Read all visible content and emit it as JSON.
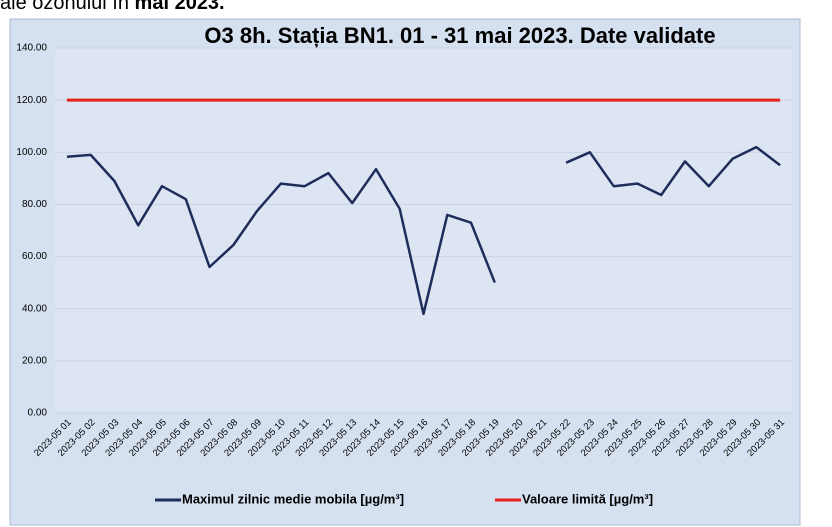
{
  "header": {
    "text": "ale ozonului în",
    "bold": "mai 2023."
  },
  "chart_data": {
    "type": "line",
    "title": "O3 8h. Stația BN1. 01 - 31 mai 2023. Date validate",
    "categories": [
      "2023-05 01",
      "2023-05 02",
      "2023-05 03",
      "2023-05 04",
      "2023-05 05",
      "2023-05 06",
      "2023-05 07",
      "2023-05 08",
      "2023-05 09",
      "2023-05 10",
      "2023-05 11",
      "2023-05 12",
      "2023-05 13",
      "2023-05 14",
      "2023-05 15",
      "2023-05 16",
      "2023-05 17",
      "2023-05 18",
      "2023-05 19",
      "2023-05 20",
      "2023-05 21",
      "2023-05 22",
      "2023-05 23",
      "2023-05 24",
      "2023-05 25",
      "2023-05 26",
      "2023-05 27",
      "2023-05 28",
      "2023-05 29",
      "2023-05 30",
      "2023-05 31"
    ],
    "series": [
      {
        "name": "Maximul zilnic medie mobila [µg/m³]",
        "color": "#1f2d5c",
        "values": [
          98.3,
          99,
          89,
          72,
          87,
          82,
          56,
          64.4,
          77.5,
          88,
          87,
          92,
          80.5,
          93.5,
          78.3,
          38,
          76,
          73,
          50,
          null,
          null,
          96,
          100,
          87,
          88,
          83.6,
          96.5,
          87,
          97.5,
          102,
          95
        ]
      },
      {
        "name": "Valoare limită [µg/m³]",
        "color": "#e8221b",
        "values": [
          120,
          120,
          120,
          120,
          120,
          120,
          120,
          120,
          120,
          120,
          120,
          120,
          120,
          120,
          120,
          120,
          120,
          120,
          120,
          120,
          120,
          120,
          120,
          120,
          120,
          120,
          120,
          120,
          120,
          120,
          120
        ]
      }
    ],
    "ylim": [
      0,
      140
    ],
    "yticks": [
      {
        "value": 0,
        "label": "0.00"
      },
      {
        "value": 20,
        "label": "20.00"
      },
      {
        "value": 40,
        "label": "40.00"
      },
      {
        "value": 60,
        "label": "60.00"
      },
      {
        "value": 80,
        "label": "80.00"
      },
      {
        "value": 100,
        "label": "100.00"
      },
      {
        "value": 120,
        "label": "120.00"
      },
      {
        "value": 140,
        "label": "140.00"
      }
    ],
    "grid": true,
    "legend": "bottom"
  }
}
